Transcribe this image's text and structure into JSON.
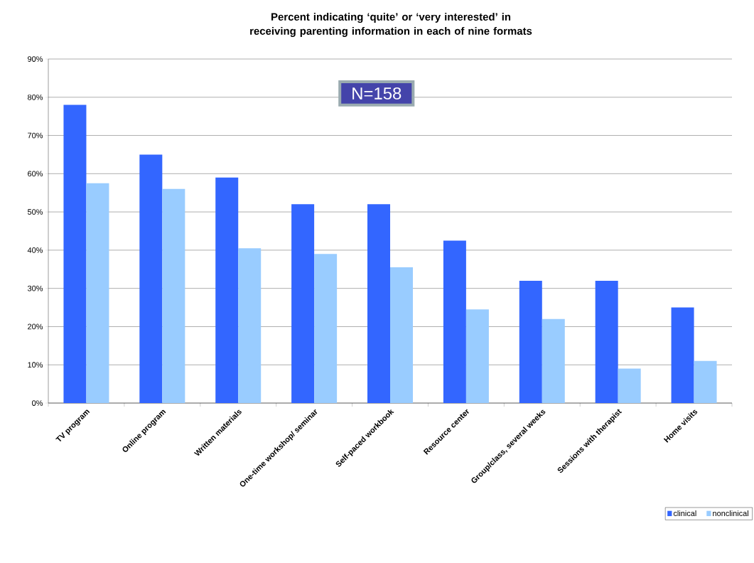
{
  "chart_data": {
    "type": "bar",
    "title": "Percent indicating ‘quite’ or ‘very interested’ in receiving parenting information in each of nine formats",
    "categories": [
      "TV program",
      "Online program",
      "Written materials",
      "One-time workshop/ seminar",
      "Self-paced workbook",
      "Resource center",
      "Group/class, several weeks",
      "Sessions with therapist",
      "Home visits"
    ],
    "series": [
      {
        "name": "clinical",
        "color": "#3366ff",
        "values": [
          78,
          65,
          59,
          52,
          52,
          42.5,
          32,
          32,
          25
        ]
      },
      {
        "name": "nonclinical",
        "color": "#99ccff",
        "values": [
          57.5,
          56,
          40.5,
          39,
          35.5,
          24.5,
          22,
          9,
          11
        ]
      }
    ],
    "ylim": [
      0,
      90
    ],
    "yticks": [
      {
        "value": 0,
        "label": "0%"
      },
      {
        "value": 10,
        "label": "10%"
      },
      {
        "value": 20,
        "label": "20%"
      },
      {
        "value": 30,
        "label": "30%"
      },
      {
        "value": 40,
        "label": "40%"
      },
      {
        "value": 50,
        "label": "50%"
      },
      {
        "value": 60,
        "label": "60%"
      },
      {
        "value": 70,
        "label": "70%"
      },
      {
        "value": 80,
        "label": "80%"
      },
      {
        "value": 90,
        "label": "90%"
      }
    ],
    "annotations": [
      "N=158"
    ],
    "grid": "y",
    "legend": "bottom right"
  }
}
